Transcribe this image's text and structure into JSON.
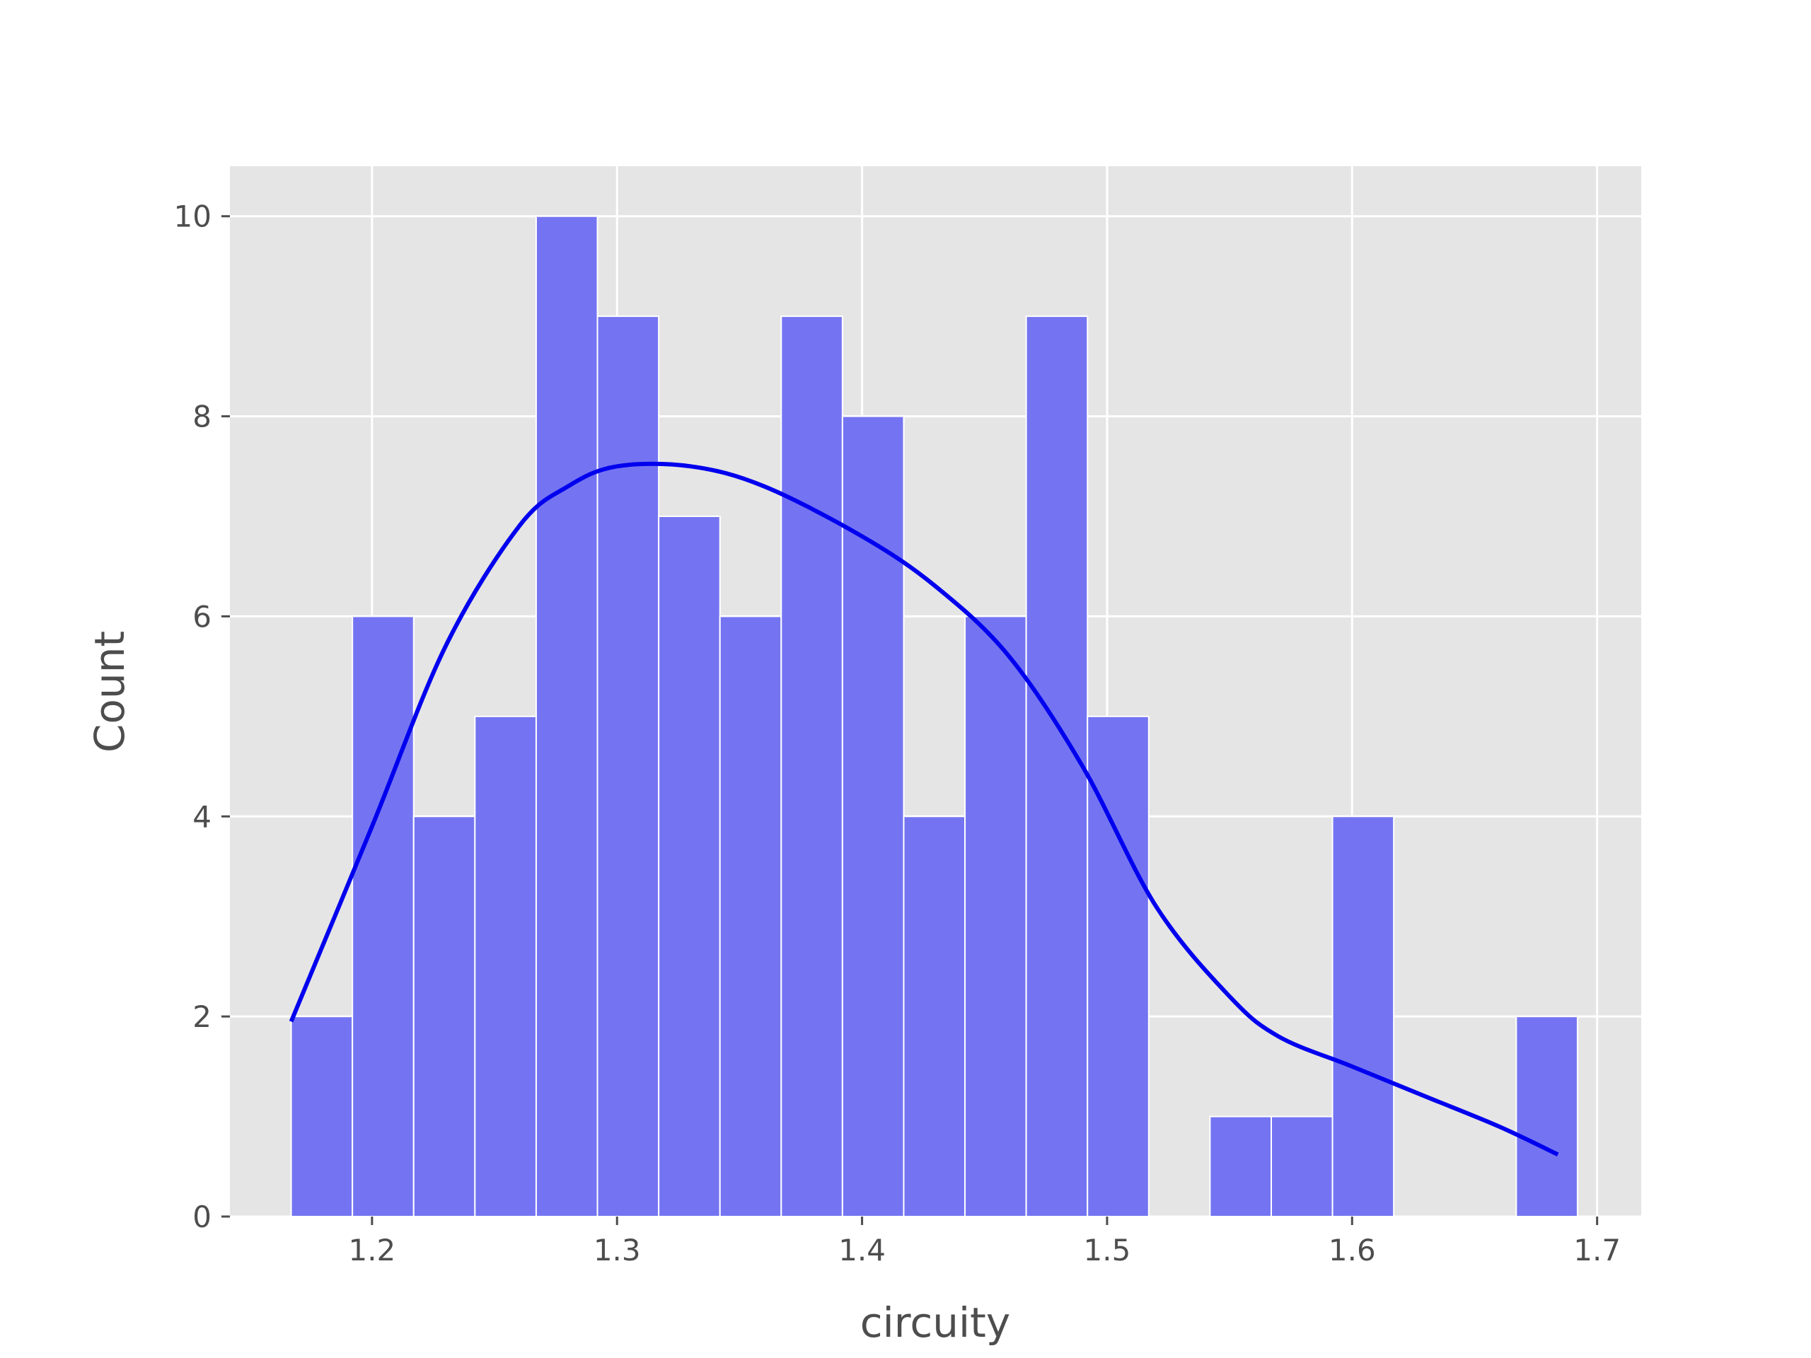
{
  "chart_data": {
    "type": "bar",
    "xlabel": "circuity",
    "ylabel": "Count",
    "xlim": [
      1.142,
      1.718
    ],
    "ylim": [
      0,
      10.5
    ],
    "xticks": [
      1.2,
      1.3,
      1.4,
      1.5,
      1.6,
      1.7
    ],
    "xtick_labels": [
      "1.2",
      "1.3",
      "1.4",
      "1.5",
      "1.6",
      "1.7"
    ],
    "yticks": [
      0,
      2,
      4,
      6,
      8,
      10
    ],
    "ytick_labels": [
      "0",
      "2",
      "4",
      "6",
      "8",
      "10"
    ],
    "grid": true,
    "bar_color": "#7474f2",
    "line_color": "#0000ee",
    "background": "#e5e5e5",
    "bin_edges": [
      1.167,
      1.192,
      1.217,
      1.242,
      1.267,
      1.292,
      1.317,
      1.342,
      1.367,
      1.392,
      1.417,
      1.442,
      1.467,
      1.492,
      1.517,
      1.542,
      1.567,
      1.592,
      1.617,
      1.642,
      1.667,
      1.692
    ],
    "counts": [
      2,
      6,
      4,
      5,
      10,
      9,
      7,
      6,
      9,
      8,
      4,
      6,
      9,
      5,
      0,
      1,
      1,
      4,
      0,
      0,
      2
    ],
    "kde": {
      "x": [
        1.167,
        1.2,
        1.23,
        1.26,
        1.28,
        1.3,
        1.33,
        1.36,
        1.4,
        1.43,
        1.46,
        1.49,
        1.52,
        1.55,
        1.57,
        1.6,
        1.63,
        1.66,
        1.684
      ],
      "y": [
        1.95,
        3.9,
        5.7,
        6.9,
        7.3,
        7.5,
        7.5,
        7.3,
        6.8,
        6.3,
        5.6,
        4.5,
        3.1,
        2.2,
        1.8,
        1.5,
        1.2,
        0.9,
        0.62
      ]
    }
  }
}
